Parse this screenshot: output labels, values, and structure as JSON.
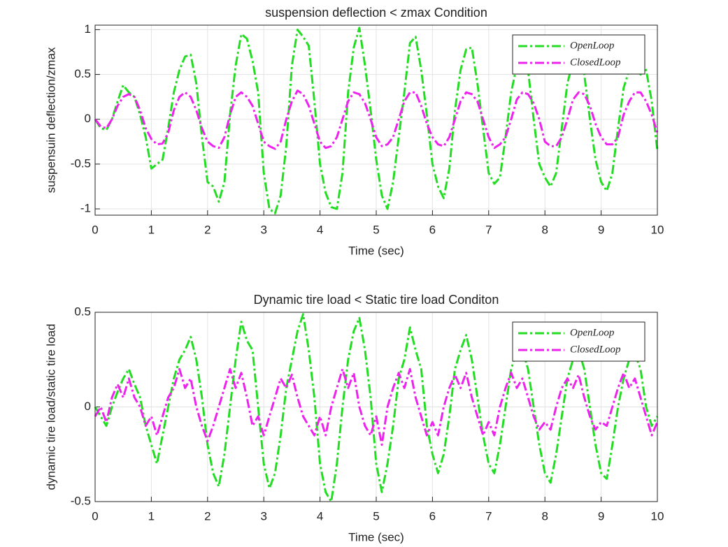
{
  "chart_data": [
    {
      "type": "line",
      "title": "suspension deflection < zmax Condition",
      "x_label": "Time (sec)",
      "y_label": "suspensuin deflection/zmax",
      "x": [
        0,
        0.1,
        0.2,
        0.3,
        0.4,
        0.5,
        0.6,
        0.7,
        0.8,
        0.9,
        1,
        1.1,
        1.2,
        1.3,
        1.4,
        1.5,
        1.6,
        1.7,
        1.8,
        1.9,
        2,
        2.1,
        2.2,
        2.3,
        2.4,
        2.5,
        2.6,
        2.7,
        2.8,
        2.9,
        3,
        3.1,
        3.2,
        3.3,
        3.4,
        3.5,
        3.6,
        3.7,
        3.8,
        3.9,
        4,
        4.1,
        4.2,
        4.3,
        4.4,
        4.5,
        4.6,
        4.7,
        4.8,
        4.9,
        5,
        5.1,
        5.2,
        5.3,
        5.4,
        5.5,
        5.6,
        5.7,
        5.8,
        5.9,
        6,
        6.1,
        6.2,
        6.3,
        6.4,
        6.5,
        6.6,
        6.7,
        6.8,
        6.9,
        7,
        7.1,
        7.2,
        7.3,
        7.4,
        7.5,
        7.6,
        7.7,
        7.8,
        7.9,
        8,
        8.1,
        8.2,
        8.3,
        8.4,
        8.5,
        8.6,
        8.7,
        8.8,
        8.9,
        9,
        9.1,
        9.2,
        9.3,
        9.4,
        9.5,
        9.6,
        9.7,
        9.8,
        9.9,
        10
      ],
      "series": [
        {
          "name": "OpenLoop",
          "color": "#22dd22",
          "values": [
            0,
            -0.1,
            -0.12,
            0,
            0.2,
            0.38,
            0.3,
            0.25,
            0.05,
            -0.2,
            -0.55,
            -0.5,
            -0.45,
            -0.1,
            0.3,
            0.55,
            0.7,
            0.72,
            0.4,
            -0.2,
            -0.7,
            -0.75,
            -0.92,
            -0.7,
            0.05,
            0.6,
            0.95,
            0.9,
            0.65,
            0.3,
            -0.6,
            -1.0,
            -1.05,
            -0.85,
            -0.3,
            0.6,
            1.0,
            0.92,
            0.82,
            0.2,
            -0.5,
            -0.82,
            -0.98,
            -1.0,
            -0.6,
            0.3,
            0.8,
            1.02,
            0.6,
            0.1,
            -0.45,
            -0.85,
            -1.0,
            -0.7,
            -0.2,
            0.3,
            0.85,
            0.92,
            0.55,
            0.05,
            -0.5,
            -0.75,
            -0.88,
            -0.55,
            0.1,
            0.55,
            0.78,
            0.8,
            0.4,
            -0.1,
            -0.6,
            -0.72,
            -0.65,
            -0.2,
            0.3,
            0.6,
            0.65,
            0.55,
            0,
            -0.5,
            -0.65,
            -0.75,
            -0.6,
            -0.1,
            0.4,
            0.65,
            0.7,
            0.5,
            0,
            -0.45,
            -0.7,
            -0.8,
            -0.6,
            -0.1,
            0.35,
            0.55,
            0.6,
            0.5,
            0.55,
            0.2,
            -0.35
          ]
        },
        {
          "name": "ClosedLoop",
          "color": "#ee22ee",
          "values": [
            0,
            -0.08,
            -0.1,
            0,
            0.15,
            0.25,
            0.28,
            0.25,
            0.1,
            -0.1,
            -0.22,
            -0.28,
            -0.27,
            -0.15,
            0.1,
            0.25,
            0.3,
            0.25,
            0.1,
            -0.1,
            -0.25,
            -0.3,
            -0.32,
            -0.2,
            0.05,
            0.25,
            0.3,
            0.25,
            0.15,
            -0.05,
            -0.25,
            -0.3,
            -0.33,
            -0.25,
            0,
            0.2,
            0.32,
            0.28,
            0.15,
            -0.05,
            -0.25,
            -0.32,
            -0.3,
            -0.2,
            0,
            0.2,
            0.3,
            0.28,
            0.18,
            0,
            -0.2,
            -0.3,
            -0.28,
            -0.2,
            0,
            0.2,
            0.3,
            0.3,
            0.15,
            -0.05,
            -0.2,
            -0.28,
            -0.3,
            -0.2,
            0,
            0.2,
            0.3,
            0.28,
            0.2,
            0,
            -0.2,
            -0.32,
            -0.28,
            -0.2,
            0,
            0.22,
            0.3,
            0.28,
            0.18,
            0,
            -0.25,
            -0.3,
            -0.3,
            -0.2,
            0,
            0.22,
            0.3,
            0.28,
            0.15,
            -0.05,
            -0.2,
            -0.28,
            -0.28,
            -0.2,
            0.05,
            0.2,
            0.3,
            0.3,
            0.2,
            0.05,
            -0.15
          ]
        }
      ],
      "xlim": [
        0,
        10
      ],
      "xticks": [
        0,
        1,
        2,
        3,
        4,
        5,
        6,
        7,
        8,
        9,
        10
      ],
      "ylim": [
        -1.07,
        1.05
      ],
      "yticks": [
        -1,
        -0.5,
        0,
        0.5,
        1
      ],
      "grid": true,
      "legend": "northeast"
    },
    {
      "type": "line",
      "title": "Dynamic tire load < Static tire load Conditon",
      "x_label": "Time (sec)",
      "y_label": "dynamic tire load/static tire load",
      "x": [
        0,
        0.1,
        0.2,
        0.3,
        0.4,
        0.5,
        0.6,
        0.7,
        0.8,
        0.9,
        1,
        1.1,
        1.2,
        1.3,
        1.4,
        1.5,
        1.6,
        1.7,
        1.8,
        1.9,
        2,
        2.1,
        2.2,
        2.3,
        2.4,
        2.5,
        2.6,
        2.7,
        2.8,
        2.9,
        3,
        3.1,
        3.2,
        3.3,
        3.4,
        3.5,
        3.6,
        3.7,
        3.8,
        3.9,
        4,
        4.1,
        4.2,
        4.3,
        4.4,
        4.5,
        4.6,
        4.7,
        4.8,
        4.9,
        5,
        5.1,
        5.2,
        5.3,
        5.4,
        5.5,
        5.6,
        5.7,
        5.8,
        5.9,
        6,
        6.1,
        6.2,
        6.3,
        6.4,
        6.5,
        6.6,
        6.7,
        6.8,
        6.9,
        7,
        7.1,
        7.2,
        7.3,
        7.4,
        7.5,
        7.6,
        7.7,
        7.8,
        7.9,
        8,
        8.1,
        8.2,
        8.3,
        8.4,
        8.5,
        8.6,
        8.7,
        8.8,
        8.9,
        9,
        9.1,
        9.2,
        9.3,
        9.4,
        9.5,
        9.6,
        9.7,
        9.8,
        9.9,
        10
      ],
      "series": [
        {
          "name": "OpenLoop",
          "color": "#22dd22",
          "values": [
            0,
            -0.05,
            -0.1,
            0,
            0.08,
            0.15,
            0.2,
            0.12,
            0.05,
            -0.1,
            -0.2,
            -0.3,
            -0.15,
            0,
            0.15,
            0.25,
            0.3,
            0.37,
            0.25,
            0.05,
            -0.2,
            -0.35,
            -0.42,
            -0.25,
            0,
            0.25,
            0.45,
            0.35,
            0.3,
            0,
            -0.3,
            -0.43,
            -0.35,
            -0.15,
            0.1,
            0.25,
            0.4,
            0.49,
            0.3,
            0.05,
            -0.3,
            -0.45,
            -0.5,
            -0.3,
            0,
            0.25,
            0.4,
            0.47,
            0.3,
            0.05,
            -0.3,
            -0.45,
            -0.3,
            -0.1,
            0.15,
            0.25,
            0.42,
            0.3,
            0.2,
            -0.1,
            -0.25,
            -0.35,
            -0.25,
            -0.05,
            0.2,
            0.3,
            0.38,
            0.25,
            0.05,
            -0.15,
            -0.3,
            -0.35,
            -0.2,
            0,
            0.2,
            0.3,
            0.3,
            0.2,
            0,
            -0.2,
            -0.35,
            -0.4,
            -0.25,
            -0.05,
            0.15,
            0.25,
            0.3,
            0.2,
            0,
            -0.2,
            -0.35,
            -0.38,
            -0.2,
            0,
            0.15,
            0.25,
            0.28,
            0.2,
            0,
            -0.1,
            -0.05
          ]
        },
        {
          "name": "ClosedLoop",
          "color": "#ee22ee",
          "values": [
            -0.05,
            0,
            -0.08,
            0.05,
            0.12,
            0.05,
            0.15,
            0.05,
            0,
            -0.1,
            -0.05,
            -0.15,
            -0.05,
            0.05,
            0.1,
            0.2,
            0.1,
            0.15,
            0,
            -0.1,
            -0.18,
            -0.1,
            0,
            0.1,
            0.2,
            0.1,
            0.18,
            0.05,
            -0.1,
            -0.05,
            -0.15,
            -0.05,
            0.05,
            0.15,
            0.1,
            0.17,
            0.05,
            -0.05,
            -0.1,
            -0.15,
            -0.05,
            -0.15,
            0,
            0.1,
            0.2,
            0.1,
            0.18,
            0,
            -0.1,
            -0.15,
            -0.05,
            -0.2,
            0,
            0.1,
            0.18,
            0.1,
            0.2,
            0.05,
            -0.05,
            -0.15,
            -0.08,
            -0.15,
            0,
            0.1,
            0.17,
            0.1,
            0.18,
            0.05,
            -0.05,
            -0.15,
            -0.08,
            -0.15,
            0,
            0.1,
            0.18,
            0.1,
            0.15,
            0.05,
            -0.05,
            -0.12,
            -0.08,
            -0.12,
            0,
            0.1,
            0.15,
            0.1,
            0.17,
            0.05,
            -0.05,
            -0.12,
            -0.08,
            -0.1,
            0,
            0.1,
            0.18,
            0.1,
            0.15,
            0.05,
            -0.05,
            -0.15,
            -0.08
          ]
        }
      ],
      "xlim": [
        0,
        10
      ],
      "xticks": [
        0,
        1,
        2,
        3,
        4,
        5,
        6,
        7,
        8,
        9,
        10
      ],
      "ylim": [
        -0.5,
        0.5
      ],
      "yticks": [
        -0.5,
        0,
        0.5
      ],
      "grid": true,
      "legend": "northeast"
    }
  ]
}
